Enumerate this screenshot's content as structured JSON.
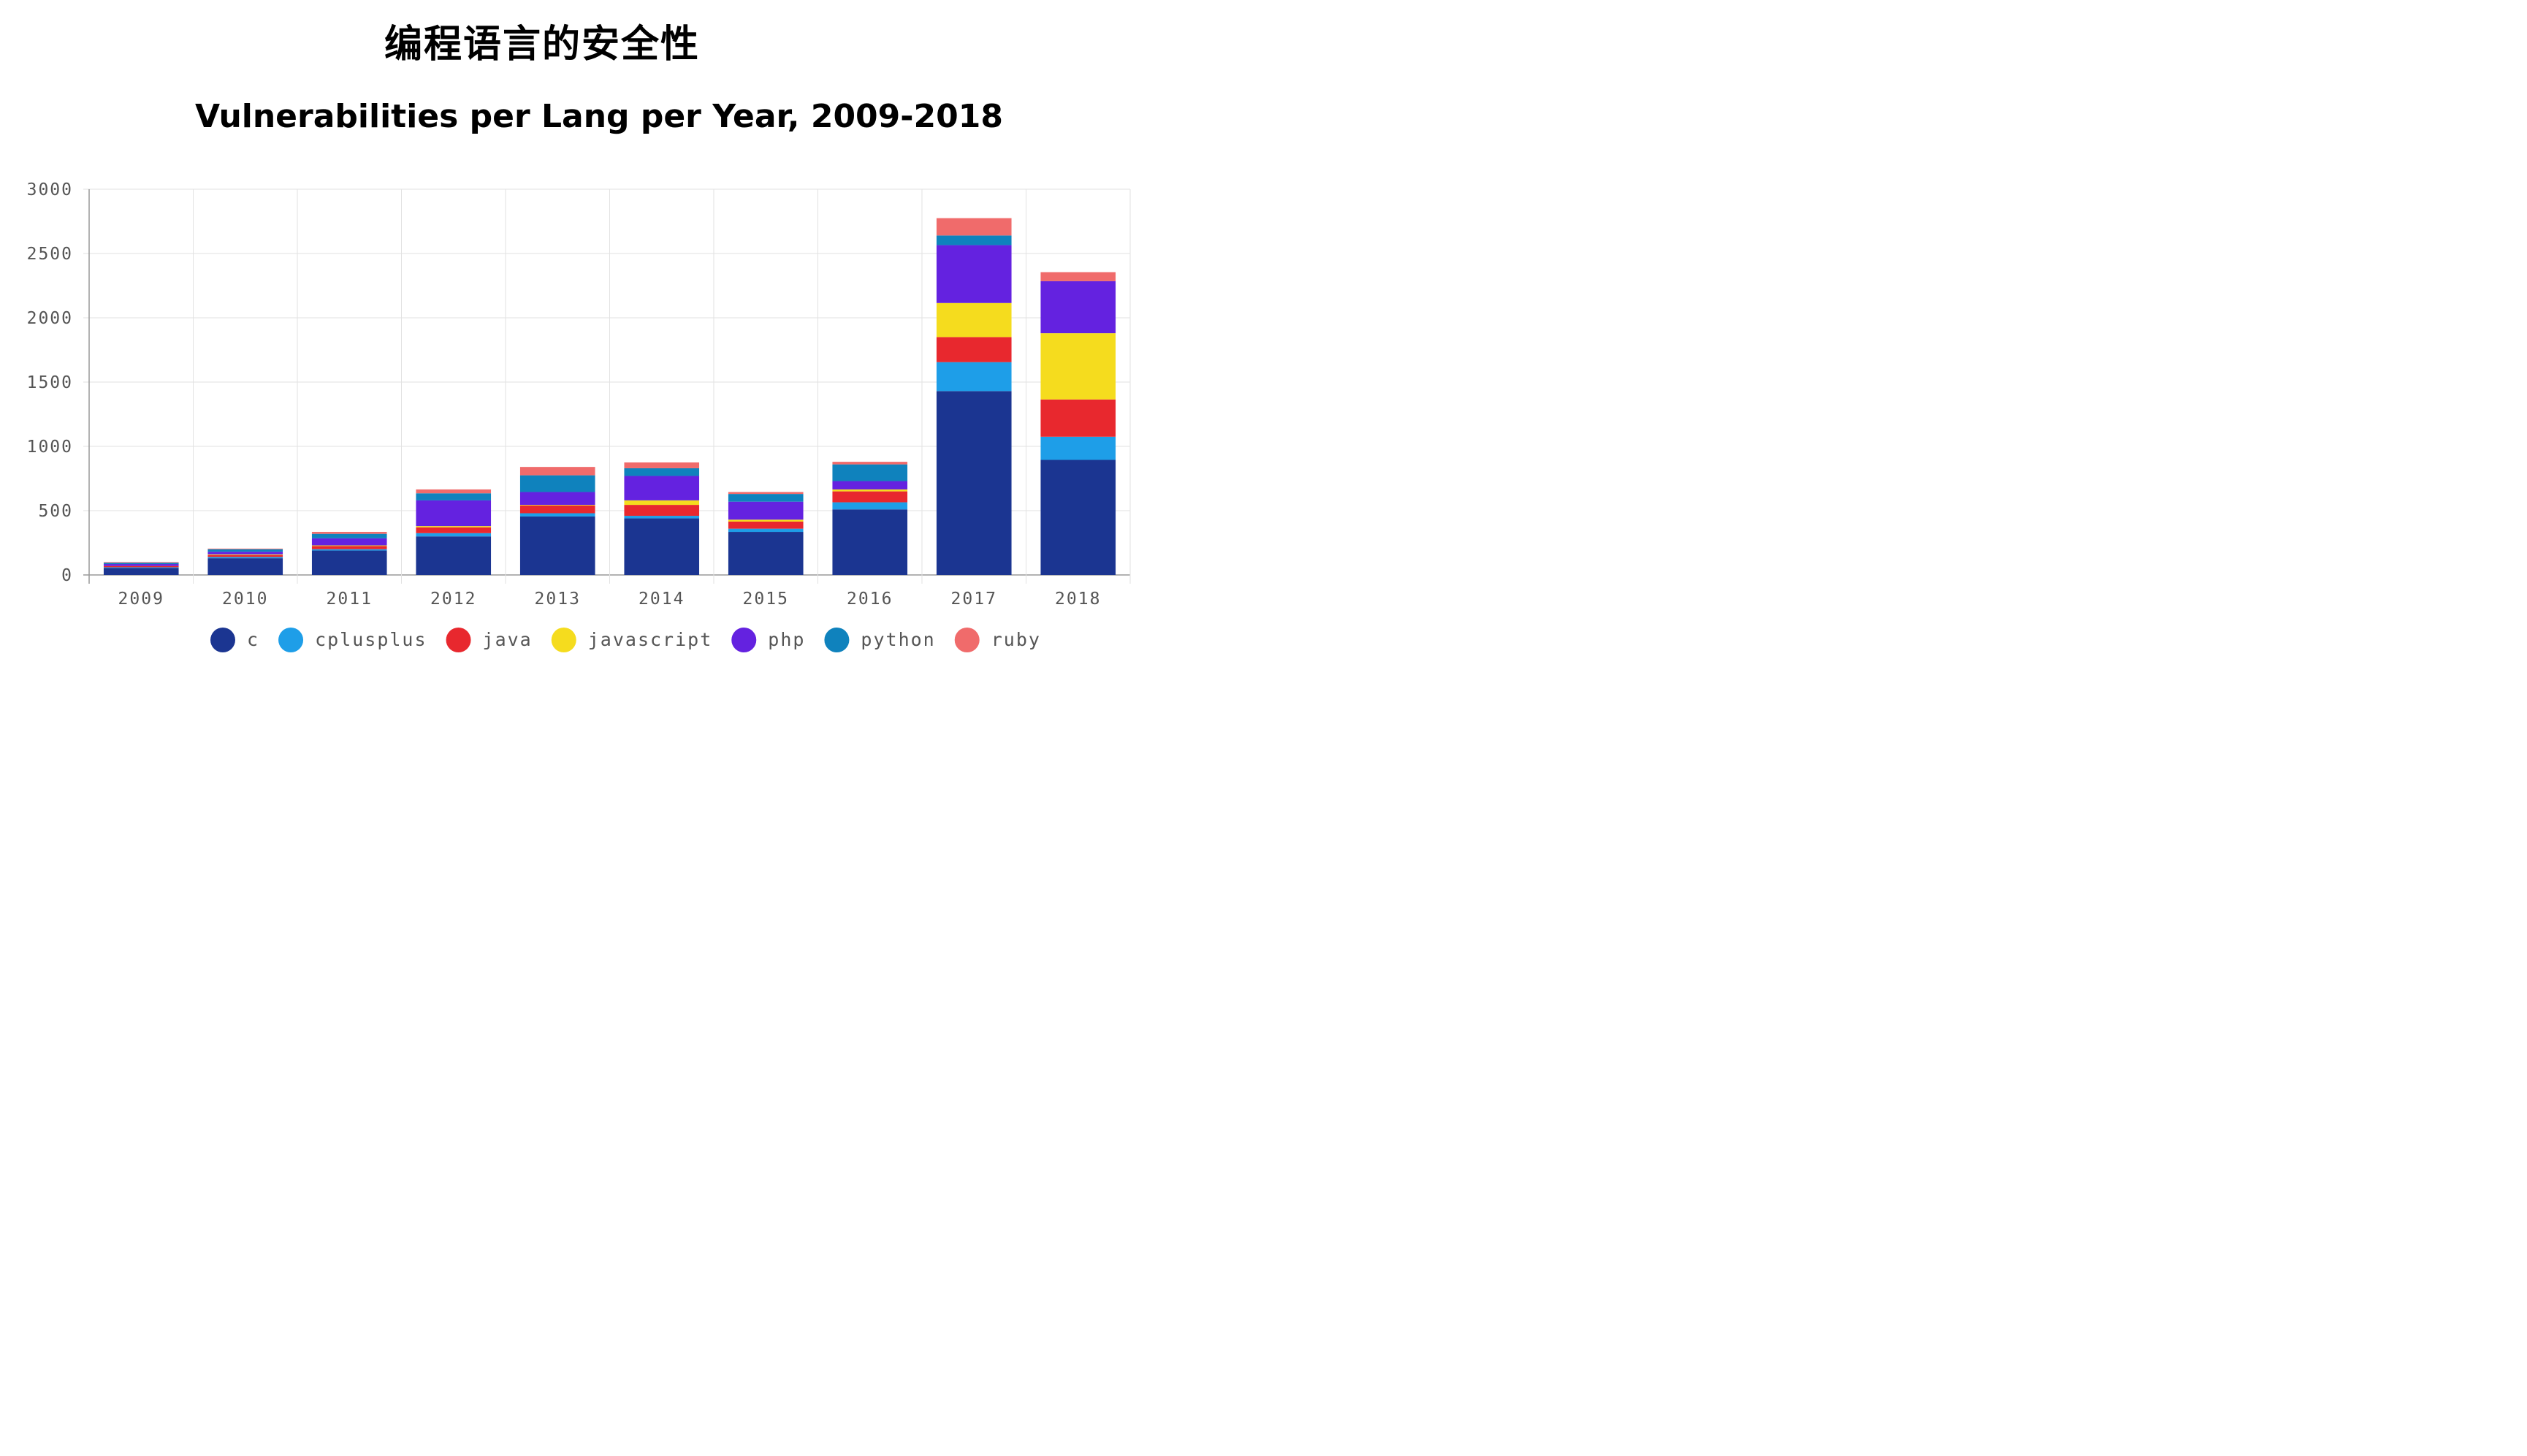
{
  "header": {
    "title": "编程语言的安全性"
  },
  "chart_data": {
    "type": "bar",
    "stacked": true,
    "title": "Vulnerabilities per Lang per Year, 2009-2018",
    "xlabel": "",
    "ylabel": "",
    "ylim": [
      0,
      3000
    ],
    "yticks": [
      0,
      500,
      1000,
      1500,
      2000,
      2500,
      3000
    ],
    "grid": true,
    "legend_position": "bottom",
    "categories": [
      "2009",
      "2010",
      "2011",
      "2012",
      "2013",
      "2014",
      "2015",
      "2016",
      "2017",
      "2018"
    ],
    "series": [
      {
        "name": "c",
        "color": "#1b3591",
        "values": [
          55,
          130,
          190,
          300,
          455,
          440,
          335,
          510,
          1430,
          895
        ]
      },
      {
        "name": "cplusplus",
        "color": "#1e9ee8",
        "values": [
          5,
          10,
          10,
          25,
          25,
          20,
          25,
          55,
          225,
          180
        ]
      },
      {
        "name": "java",
        "color": "#e8282e",
        "values": [
          10,
          15,
          25,
          45,
          60,
          85,
          55,
          85,
          195,
          290
        ]
      },
      {
        "name": "javascript",
        "color": "#f5dc1e",
        "values": [
          0,
          5,
          5,
          10,
          5,
          35,
          15,
          15,
          265,
          515
        ]
      },
      {
        "name": "php",
        "color": "#6422e0",
        "values": [
          15,
          20,
          55,
          200,
          100,
          190,
          140,
          65,
          450,
          405
        ]
      },
      {
        "name": "python",
        "color": "#0f82bd",
        "values": [
          10,
          20,
          35,
          55,
          130,
          60,
          60,
          130,
          75,
          0
        ]
      },
      {
        "name": "ruby",
        "color": "#f06b6b",
        "values": [
          5,
          5,
          15,
          30,
          65,
          45,
          15,
          20,
          135,
          70
        ]
      }
    ]
  }
}
